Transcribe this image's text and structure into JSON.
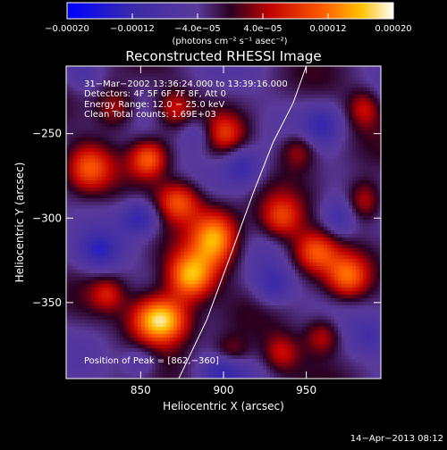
{
  "chart_data": {
    "type": "heatmap",
    "title": "Reconstructed RHESSI Image",
    "xlabel": "Heliocentric X (arcsec)",
    "ylabel": "Heliocentric Y (arcsec)",
    "xlim": [
      805,
      995
    ],
    "ylim": [
      -395,
      -210
    ],
    "x_ticks": [
      850,
      900,
      950
    ],
    "y_ticks": [
      -250,
      -300,
      -350
    ],
    "x_tick_labels": [
      "850",
      "900",
      "950"
    ],
    "y_tick_labels": [
      "−250",
      "−300",
      "−350"
    ],
    "colorbar": {
      "range": [
        -0.0002,
        0.0002
      ],
      "ticks": [
        -0.0002,
        -0.00012,
        -4e-05,
        4e-05,
        0.00012,
        0.0002
      ],
      "tick_labels": [
        "−0.00020",
        "−0.00012",
        "−4.0e−05",
        "4.0e−05",
        "0.00012",
        "0.00020"
      ],
      "unit_label": "(photons cm⁻² s⁻¹ asec⁻²)"
    },
    "annotations": [
      "31−Mar−2002 13:36:24.000 to 13:39:16.000",
      "Detectors: 4F 5F 6F 7F 8F, Att 0",
      "Energy Range: 12.0 − 25.0 keV",
      "Clean    Total counts: 1.69E+03"
    ],
    "peak_label": "Position of Peak = [862,−360]",
    "peak": [
      862,
      -360
    ],
    "limb_curve": [
      [
        873,
        -395
      ],
      [
        890,
        -360
      ],
      [
        905,
        -320
      ],
      [
        918,
        -285
      ],
      [
        930,
        -255
      ],
      [
        942,
        -232
      ],
      [
        950,
        -210
      ]
    ],
    "bright_blobs": [
      {
        "x": 862,
        "y": -360,
        "sx": 12,
        "sy": 10,
        "amp": 1.0
      },
      {
        "x": 880,
        "y": -335,
        "sx": 10,
        "sy": 10,
        "amp": 0.75
      },
      {
        "x": 895,
        "y": -312,
        "sx": 10,
        "sy": 12,
        "amp": 0.7
      },
      {
        "x": 873,
        "y": -290,
        "sx": 10,
        "sy": 9,
        "amp": 0.6
      },
      {
        "x": 855,
        "y": -265,
        "sx": 8,
        "sy": 8,
        "amp": 0.55
      },
      {
        "x": 818,
        "y": -270,
        "sx": 10,
        "sy": 10,
        "amp": 0.5
      },
      {
        "x": 835,
        "y": -235,
        "sx": 9,
        "sy": 9,
        "amp": 0.4
      },
      {
        "x": 870,
        "y": -235,
        "sx": 8,
        "sy": 8,
        "amp": 0.35
      },
      {
        "x": 900,
        "y": -250,
        "sx": 9,
        "sy": 8,
        "amp": 0.4
      },
      {
        "x": 935,
        "y": -300,
        "sx": 9,
        "sy": 9,
        "amp": 0.45
      },
      {
        "x": 955,
        "y": -320,
        "sx": 10,
        "sy": 9,
        "amp": 0.55
      },
      {
        "x": 975,
        "y": -335,
        "sx": 9,
        "sy": 9,
        "amp": 0.5
      },
      {
        "x": 985,
        "y": -290,
        "sx": 8,
        "sy": 9,
        "amp": 0.45
      },
      {
        "x": 945,
        "y": -260,
        "sx": 8,
        "sy": 8,
        "amp": 0.35
      },
      {
        "x": 960,
        "y": -370,
        "sx": 8,
        "sy": 8,
        "amp": 0.4
      },
      {
        "x": 935,
        "y": -380,
        "sx": 8,
        "sy": 8,
        "amp": 0.35
      },
      {
        "x": 985,
        "y": -235,
        "sx": 7,
        "sy": 8,
        "amp": 0.35
      },
      {
        "x": 830,
        "y": -345,
        "sx": 7,
        "sy": 7,
        "amp": 0.3
      },
      {
        "x": 905,
        "y": -380,
        "sx": 8,
        "sy": 7,
        "amp": 0.3
      }
    ],
    "dark_blobs": [
      {
        "x": 850,
        "y": -300,
        "sx": 8,
        "sy": 7,
        "amp": 0.7
      },
      {
        "x": 825,
        "y": -320,
        "sx": 9,
        "sy": 8,
        "amp": 0.6
      },
      {
        "x": 912,
        "y": -270,
        "sx": 8,
        "sy": 8,
        "amp": 0.6
      },
      {
        "x": 885,
        "y": -250,
        "sx": 8,
        "sy": 7,
        "amp": 0.5
      },
      {
        "x": 930,
        "y": -340,
        "sx": 8,
        "sy": 8,
        "amp": 0.55
      },
      {
        "x": 960,
        "y": -245,
        "sx": 8,
        "sy": 8,
        "amp": 0.55
      },
      {
        "x": 970,
        "y": -300,
        "sx": 7,
        "sy": 8,
        "amp": 0.45
      },
      {
        "x": 900,
        "y": -390,
        "sx": 9,
        "sy": 7,
        "amp": 0.6
      },
      {
        "x": 850,
        "y": -385,
        "sx": 8,
        "sy": 7,
        "amp": 0.45
      },
      {
        "x": 990,
        "y": -370,
        "sx": 8,
        "sy": 8,
        "amp": 0.4
      },
      {
        "x": 815,
        "y": -215,
        "sx": 7,
        "sy": 7,
        "amp": 0.3
      }
    ]
  },
  "timestamp": "14−Apr−2013 08:12"
}
